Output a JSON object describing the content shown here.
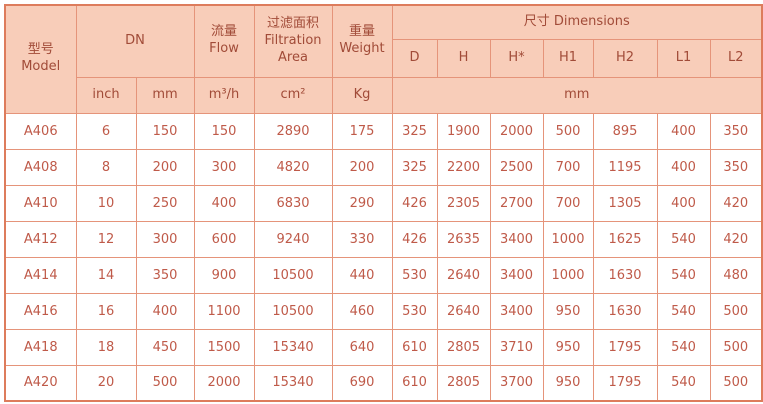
{
  "colors": {
    "header_bg": "#f8cdb9",
    "border": "#e5947a",
    "outer_border": "#dd7c5c",
    "header_text": "#a14b38",
    "data_text": "#bf5a49",
    "row_bg": "#ffffff"
  },
  "table": {
    "header": {
      "model": "型号\nModel",
      "dn": "DN",
      "flow": "流量\nFlow",
      "filtration_area": "过滤面积\nFiltration\nArea",
      "weight": "重量\nWeight",
      "dimensions": "尺寸 Dimensions",
      "dim_cols": [
        "D",
        "H",
        "H*",
        "H1",
        "H2",
        "L1",
        "L2"
      ],
      "units": {
        "inch": "inch",
        "mm": "mm",
        "flow": "m³/h",
        "area": "cm²",
        "weight": "Kg",
        "dim_mm": "mm"
      }
    },
    "rows": [
      [
        "A406",
        "6",
        "150",
        "150",
        "2890",
        "175",
        "325",
        "1900",
        "2000",
        "500",
        "895",
        "400",
        "350"
      ],
      [
        "A408",
        "8",
        "200",
        "300",
        "4820",
        "200",
        "325",
        "2200",
        "2500",
        "700",
        "1195",
        "400",
        "350"
      ],
      [
        "A410",
        "10",
        "250",
        "400",
        "6830",
        "290",
        "426",
        "2305",
        "2700",
        "700",
        "1305",
        "400",
        "420"
      ],
      [
        "A412",
        "12",
        "300",
        "600",
        "9240",
        "330",
        "426",
        "2635",
        "3400",
        "1000",
        "1625",
        "540",
        "420"
      ],
      [
        "A414",
        "14",
        "350",
        "900",
        "10500",
        "440",
        "530",
        "2640",
        "3400",
        "1000",
        "1630",
        "540",
        "480"
      ],
      [
        "A416",
        "16",
        "400",
        "1100",
        "10500",
        "460",
        "530",
        "2640",
        "3400",
        "950",
        "1630",
        "540",
        "500"
      ],
      [
        "A418",
        "18",
        "450",
        "1500",
        "15340",
        "640",
        "610",
        "2805",
        "3710",
        "950",
        "1795",
        "540",
        "500"
      ],
      [
        "A420",
        "20",
        "500",
        "2000",
        "15340",
        "690",
        "610",
        "2805",
        "3700",
        "950",
        "1795",
        "540",
        "500"
      ]
    ]
  }
}
